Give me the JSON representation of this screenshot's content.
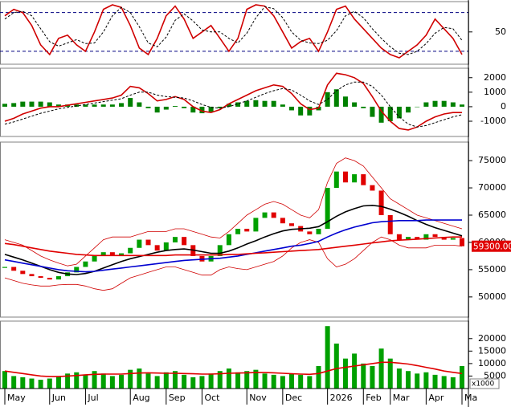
{
  "chart_data": [
    {
      "type": "line",
      "ylim": [
        0,
        97
      ],
      "yticks": [
        50
      ],
      "reference_lines": [
        80,
        20
      ],
      "reference_color": "#000080",
      "series": [
        {
          "color": "#d00000",
          "style": "line",
          "values": [
            75,
            85,
            80,
            60,
            30,
            15,
            40,
            45,
            30,
            20,
            50,
            85,
            92,
            88,
            60,
            25,
            15,
            40,
            75,
            90,
            70,
            40,
            50,
            60,
            40,
            20,
            40,
            85,
            92,
            90,
            75,
            50,
            25,
            35,
            40,
            20,
            50,
            85,
            90,
            70,
            55,
            40,
            25,
            15,
            10,
            20,
            30,
            45,
            70,
            55,
            40,
            15
          ]
        },
        {
          "color": "#000000",
          "style": "dashed",
          "values": [
            70,
            80,
            82,
            75,
            55,
            35,
            28,
            33,
            38,
            32,
            33,
            50,
            75,
            88,
            80,
            58,
            33,
            27,
            42,
            68,
            78,
            67,
            53,
            50,
            50,
            40,
            33,
            48,
            72,
            89,
            86,
            72,
            50,
            37,
            33,
            32,
            37,
            52,
            75,
            82,
            72,
            55,
            40,
            27,
            17,
            15,
            20,
            32,
            48,
            57,
            55,
            37
          ]
        }
      ]
    },
    {
      "type": "macd",
      "ylim": [
        -2050,
        2650
      ],
      "yticks": [
        2000,
        1000,
        0,
        -1000
      ],
      "series": [
        {
          "color": "#008000",
          "style": "bar",
          "values": [
            200,
            250,
            350,
            350,
            350,
            300,
            150,
            150,
            150,
            150,
            150,
            150,
            150,
            250,
            600,
            300,
            -100,
            -400,
            -200,
            50,
            -100,
            -400,
            -450,
            -350,
            -100,
            200,
            300,
            400,
            450,
            400,
            400,
            150,
            -250,
            -600,
            -600,
            -250,
            1000,
            1200,
            700,
            300,
            -100,
            -700,
            -1100,
            -1000,
            -800,
            -400,
            0,
            300,
            400,
            400,
            300,
            150
          ]
        },
        {
          "color": "#d00000",
          "style": "line",
          "values": [
            -1000,
            -800,
            -500,
            -300,
            -100,
            0,
            0,
            100,
            200,
            300,
            400,
            500,
            600,
            800,
            1400,
            1300,
            900,
            400,
            500,
            700,
            500,
            0,
            -300,
            -400,
            -200,
            200,
            500,
            800,
            1100,
            1300,
            1500,
            1400,
            900,
            200,
            -200,
            -100,
            1500,
            2300,
            2200,
            2000,
            1600,
            700,
            -300,
            -1000,
            -1500,
            -1600,
            -1400,
            -1000,
            -700,
            -500,
            -400,
            -400
          ]
        },
        {
          "color": "#000000",
          "style": "dashed",
          "values": [
            -1200,
            -1050,
            -850,
            -650,
            -450,
            -300,
            -150,
            -50,
            50,
            150,
            250,
            350,
            450,
            550,
            800,
            1000,
            1000,
            800,
            700,
            650,
            600,
            400,
            150,
            -50,
            -100,
            0,
            200,
            400,
            650,
            900,
            1100,
            1250,
            1150,
            800,
            400,
            150,
            500,
            1100,
            1500,
            1700,
            1700,
            1400,
            800,
            0,
            -700,
            -1200,
            -1400,
            -1300,
            -1100,
            -900,
            -700,
            -550
          ]
        }
      ]
    },
    {
      "type": "candlestick",
      "ylim": [
        46300,
        78400
      ],
      "yticks": [
        75000,
        70000,
        65000,
        60000,
        55000,
        50000
      ],
      "price_label": {
        "value": 59300,
        "label": "59300.00"
      },
      "series": [
        {
          "color": "#d00000",
          "style": "thin",
          "values": [
            60500,
            60000,
            59500,
            58500,
            57500,
            56800,
            56200,
            55700,
            56000,
            57500,
            59000,
            60500,
            61000,
            61000,
            61000,
            61500,
            62000,
            62000,
            62000,
            62500,
            62500,
            62000,
            61500,
            61000,
            60800,
            62000,
            63500,
            65000,
            66000,
            67000,
            67500,
            67000,
            66000,
            65000,
            64500,
            66000,
            71000,
            74500,
            75500,
            75000,
            74000,
            72000,
            70000,
            68000,
            67000,
            66000,
            65000,
            64500,
            64000,
            63500,
            63000,
            62500
          ]
        },
        {
          "color": "#d00000",
          "style": "thin",
          "values": [
            53500,
            53000,
            52500,
            52200,
            52000,
            52000,
            52200,
            52300,
            52300,
            52000,
            51500,
            51200,
            51500,
            52500,
            53500,
            54000,
            54500,
            55000,
            55500,
            55500,
            55000,
            54500,
            54000,
            54000,
            55000,
            55500,
            55200,
            55000,
            55500,
            56000,
            56500,
            57500,
            59000,
            60000,
            60500,
            60000,
            57000,
            55500,
            56000,
            57000,
            58500,
            60000,
            61000,
            60500,
            59500,
            59000,
            59000,
            59000,
            59500,
            59500,
            59500,
            59300
          ]
        },
        {
          "color": "#00a000",
          "style": "candle",
          "values": [
            55500,
            54800,
            54200,
            53800,
            53500,
            53200,
            53800,
            54500,
            55500,
            56500,
            57500,
            58200,
            57500,
            58000,
            59000,
            60500,
            59500,
            58500,
            60000,
            61000,
            59500,
            57500,
            56500,
            57500,
            59500,
            61500,
            62500,
            62000,
            64500,
            65500,
            64500,
            63500,
            63000,
            62000,
            61500,
            62500,
            70000,
            73000,
            71000,
            72500,
            70500,
            69500,
            65000,
            61500,
            60500,
            61000,
            60500,
            61500,
            61000,
            60500,
            60800,
            59300
          ]
        },
        {
          "color": "#000000",
          "style": "line",
          "values": [
            57800,
            57300,
            56800,
            56200,
            55600,
            55000,
            54500,
            54200,
            54100,
            54300,
            54700,
            55300,
            55900,
            56500,
            57000,
            57400,
            57800,
            58200,
            58500,
            58700,
            58800,
            58600,
            58300,
            58000,
            58000,
            58400,
            59000,
            59700,
            60300,
            61000,
            61600,
            62100,
            62400,
            62500,
            62600,
            62900,
            63800,
            64800,
            65600,
            66200,
            66700,
            66800,
            66600,
            66100,
            65500,
            64800,
            64000,
            63300,
            62700,
            62200,
            61700,
            61200
          ]
        },
        {
          "color": "#0000d0",
          "style": "line",
          "values": [
            56800,
            56500,
            56200,
            55900,
            55600,
            55300,
            55000,
            54800,
            54700,
            54600,
            54700,
            54900,
            55100,
            55300,
            55500,
            55700,
            55900,
            56100,
            56300,
            56500,
            56700,
            56800,
            56900,
            57000,
            57100,
            57300,
            57500,
            57800,
            58100,
            58400,
            58700,
            59000,
            59300,
            59500,
            59800,
            60200,
            61000,
            61700,
            62300,
            62800,
            63200,
            63600,
            63800,
            63900,
            64000,
            64000,
            64000,
            64100,
            64100,
            64100,
            64100,
            64100
          ]
        },
        {
          "color": "#e00000",
          "style": "line",
          "values": [
            59800,
            59600,
            59300,
            59000,
            58700,
            58400,
            58200,
            58000,
            57800,
            57700,
            57600,
            57600,
            57600,
            57600,
            57600,
            57600,
            57600,
            57600,
            57600,
            57700,
            57700,
            57700,
            57700,
            57700,
            57700,
            57800,
            57800,
            57900,
            58000,
            58100,
            58200,
            58300,
            58400,
            58500,
            58600,
            58700,
            58900,
            59100,
            59300,
            59500,
            59700,
            59900,
            60100,
            60300,
            60400,
            60500,
            60600,
            60700,
            60800,
            60900,
            61000,
            61000
          ]
        }
      ]
    },
    {
      "type": "bar",
      "ylim": [
        0,
        27000
      ],
      "yticks": [
        20000,
        15000,
        10000,
        5000
      ],
      "unit_label": "x1000",
      "categories": [
        "May",
        null,
        null,
        null,
        null,
        "Jun",
        null,
        null,
        null,
        "Jul",
        null,
        null,
        null,
        null,
        "Aug",
        null,
        null,
        null,
        "Sep",
        null,
        null,
        null,
        "Oct",
        null,
        null,
        null,
        null,
        "Nov",
        null,
        null,
        null,
        "Dec",
        null,
        null,
        null,
        null,
        "2026",
        null,
        null,
        null,
        "Feb",
        null,
        null,
        "Mar",
        null,
        null,
        null,
        "Apr",
        null,
        null,
        null,
        "Ma"
      ],
      "series": [
        {
          "color": "#00a000",
          "style": "bar",
          "values": [
            7000,
            5000,
            4500,
            4000,
            3500,
            4000,
            5000,
            6000,
            6500,
            5500,
            7000,
            6000,
            5000,
            5500,
            7500,
            8000,
            6000,
            5000,
            6500,
            7000,
            5500,
            4500,
            5000,
            6000,
            7000,
            8000,
            6500,
            7000,
            7500,
            6000,
            5500,
            5000,
            6000,
            5500,
            5000,
            9000,
            25000,
            18000,
            12000,
            14000,
            10000,
            9000,
            16000,
            12000,
            8000,
            7000,
            6000,
            6500,
            5500,
            5000,
            4500,
            9000
          ]
        },
        {
          "color": "#e00000",
          "style": "line",
          "values": [
            7000,
            6500,
            6000,
            5500,
            5000,
            4800,
            4800,
            5000,
            5200,
            5500,
            5700,
            5800,
            5800,
            5800,
            6000,
            6200,
            6300,
            6200,
            6100,
            6100,
            6000,
            5900,
            5800,
            5800,
            5900,
            6100,
            6200,
            6300,
            6400,
            6400,
            6300,
            6100,
            5900,
            5800,
            5700,
            6000,
            7000,
            8000,
            8500,
            9000,
            9500,
            10000,
            10500,
            10500,
            10200,
            9800,
            9200,
            8500,
            7800,
            7000,
            6500,
            6000
          ]
        }
      ]
    }
  ]
}
